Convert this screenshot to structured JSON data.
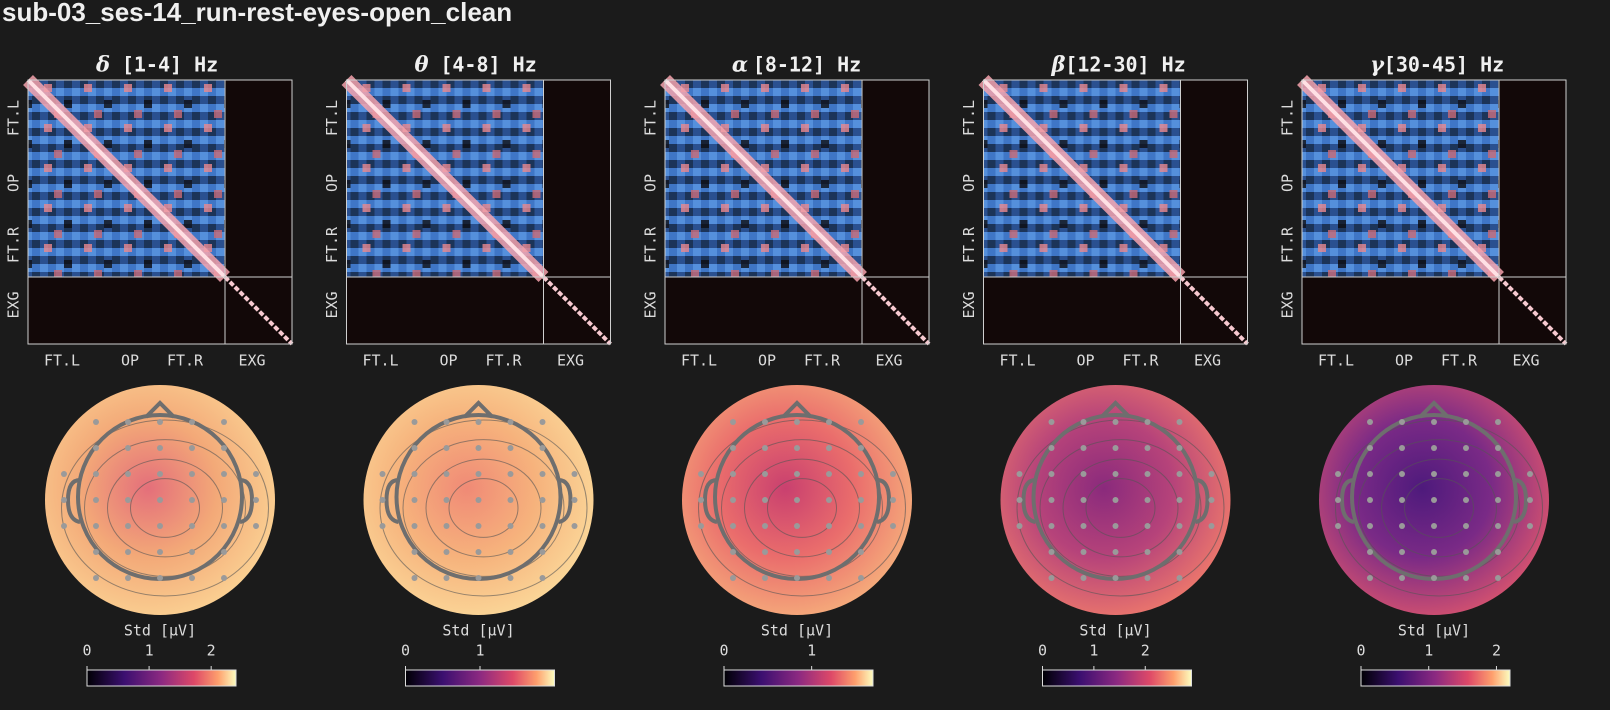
{
  "title": "sub-03_ses-14_run-rest-eyes-open_clean",
  "panels": [
    {
      "symbol": "δ",
      "band": "[1-4] Hz",
      "matrix": {
        "y_labels": [
          "FT.L",
          "OP",
          "FT.R",
          "EXG"
        ],
        "x_labels": [
          "FT.L",
          "OP",
          "FT.R",
          "EXG"
        ]
      },
      "colorbar": {
        "label": "Std [μV]",
        "lim": [
          0,
          2.4
        ],
        "ticks": [
          0,
          1,
          2
        ]
      }
    },
    {
      "symbol": "θ",
      "band": "[4-8] Hz",
      "matrix": {
        "y_labels": [
          "FT.L",
          "OP",
          "FT.R",
          "EXG"
        ],
        "x_labels": [
          "FT.L",
          "OP",
          "FT.R",
          "EXG"
        ]
      },
      "colorbar": {
        "label": "Std [μV]",
        "lim": [
          0,
          2.0
        ],
        "ticks": [
          0,
          1
        ]
      }
    },
    {
      "symbol": "α",
      "band": "[8-12] Hz",
      "matrix": {
        "y_labels": [
          "FT.L",
          "OP",
          "FT.R",
          "EXG"
        ],
        "x_labels": [
          "FT.L",
          "OP",
          "FT.R",
          "EXG"
        ]
      },
      "colorbar": {
        "label": "Std [μV]",
        "lim": [
          0,
          1.7
        ],
        "ticks": [
          0,
          1
        ]
      }
    },
    {
      "symbol": "β",
      "band": "[12-30] Hz",
      "matrix": {
        "y_labels": [
          "FT.L",
          "OP",
          "FT.R",
          "EXG"
        ],
        "x_labels": [
          "FT.L",
          "OP",
          "FT.R",
          "EXG"
        ]
      },
      "colorbar": {
        "label": "Std [μV]",
        "lim": [
          0,
          2.9
        ],
        "ticks": [
          0,
          1,
          2
        ]
      }
    },
    {
      "symbol": "γ",
      "band": "[30-45] Hz",
      "matrix": {
        "y_labels": [
          "FT.L",
          "OP",
          "FT.R",
          "EXG"
        ],
        "x_labels": [
          "FT.L",
          "OP",
          "FT.R",
          "EXG"
        ]
      },
      "colorbar": {
        "label": "Std [μV]",
        "lim": [
          0,
          2.2
        ],
        "ticks": [
          0,
          1,
          2
        ]
      }
    }
  ]
}
